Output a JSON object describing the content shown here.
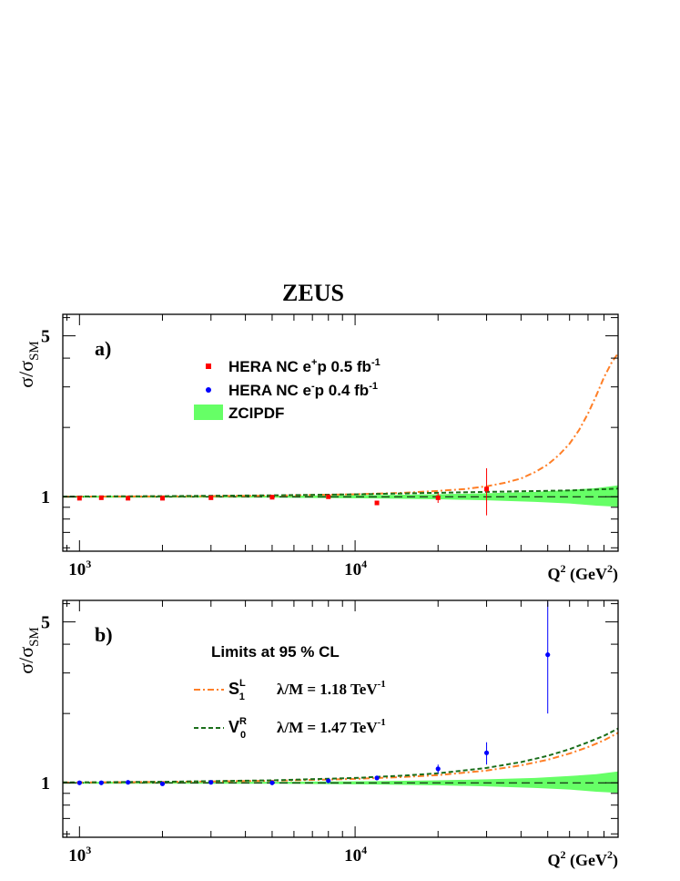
{
  "figure_title": "ZEUS",
  "colors": {
    "ep_plus": "#ff0000",
    "ep_minus": "#0000ff",
    "band": "#66ff66",
    "S1L_curve": "#ff7f27",
    "V0R_curve": "#1a6e1a",
    "axis": "#000000"
  },
  "chart_data": [
    {
      "type": "scatter",
      "panel_label": "a)",
      "title": "",
      "ylabel": {
        "main": "σ/σ",
        "sub": "SM"
      },
      "xlabel": {
        "main": "Q",
        "sup": "2",
        "units": "(GeV",
        "units_sup": "2",
        "units_close": ")"
      },
      "xscale": "log",
      "yscale": "log",
      "xlim": [
        870,
        90000
      ],
      "ylim": [
        0.58,
        6.2
      ],
      "x_major_ticks": [
        1000,
        10000
      ],
      "x_tick_labels": [
        {
          "base": "10",
          "exp": "3"
        },
        {
          "base": "10",
          "exp": "4"
        }
      ],
      "y_labeled_ticks": [
        {
          "value": 1,
          "label": "1"
        },
        {
          "value": 5,
          "label": "5"
        }
      ],
      "y_minor_ticks": [
        0.6,
        0.7,
        0.8,
        0.9,
        2,
        3,
        4,
        6
      ],
      "reference_line": 1,
      "legend": {
        "position": "upper-middle",
        "entries": [
          {
            "kind": "marker-square",
            "color": "#ff0000",
            "text": "HERA NC  e",
            "sup": "+",
            "text2": "p  0.5 fb",
            "sup2": "-1"
          },
          {
            "kind": "marker-circle",
            "color": "#0000ff",
            "text": "HERA NC  e",
            "sup": "-",
            "text2": "p  0.4 fb",
            "sup2": "-1"
          },
          {
            "kind": "band",
            "color": "#66ff66",
            "text": "ZCIPDF"
          }
        ]
      },
      "band": {
        "name": "ZCIPDF",
        "x": [
          870,
          5000,
          12000,
          20000,
          30000,
          45000,
          60000,
          75000,
          90000
        ],
        "low": [
          0.99,
          0.99,
          0.983,
          0.975,
          0.965,
          0.95,
          0.935,
          0.915,
          0.905
        ],
        "high": [
          1.01,
          1.01,
          1.017,
          1.025,
          1.035,
          1.05,
          1.07,
          1.09,
          1.12
        ]
      },
      "series": [
        {
          "name": "HERA NC e+p",
          "marker": "square",
          "color": "#ff0000",
          "points": [
            {
              "x": 1000,
              "y": 0.985,
              "err": 0
            },
            {
              "x": 1200,
              "y": 0.99,
              "err": 0
            },
            {
              "x": 1500,
              "y": 0.985,
              "err": 0
            },
            {
              "x": 2000,
              "y": 0.985,
              "err": 0
            },
            {
              "x": 3000,
              "y": 0.99,
              "err": 0
            },
            {
              "x": 5000,
              "y": 0.995,
              "err": 0
            },
            {
              "x": 8000,
              "y": 1.0,
              "err": 0
            },
            {
              "x": 12000,
              "y": 0.94,
              "err": 0.018
            },
            {
              "x": 20000,
              "y": 0.99,
              "err": 0.05
            },
            {
              "x": 30000,
              "y": 1.08,
              "err": 0.25
            }
          ]
        }
      ],
      "curves": [
        {
          "name": "S1L",
          "color": "#ff7f27",
          "dash": "dash-dot",
          "x": [
            870,
            2000,
            5000,
            10000,
            15000,
            20000,
            25000,
            30000,
            35000,
            40000,
            45000,
            50000,
            55000,
            60000,
            65000,
            70000,
            75000,
            80000,
            85000,
            90000
          ],
          "y": [
            1.001,
            1.004,
            1.01,
            1.025,
            1.04,
            1.06,
            1.08,
            1.11,
            1.15,
            1.2,
            1.28,
            1.38,
            1.52,
            1.7,
            1.95,
            2.3,
            2.75,
            3.3,
            3.8,
            4.2
          ]
        },
        {
          "name": "V0R",
          "color": "#1a6e1a",
          "dash": "dashed",
          "x": [
            870,
            2000,
            5000,
            10000,
            20000,
            30000,
            45000,
            60000,
            75000,
            90000
          ],
          "y": [
            1.002,
            1.006,
            1.014,
            1.024,
            1.04,
            1.05,
            1.058,
            1.065,
            1.075,
            1.085
          ]
        }
      ]
    },
    {
      "type": "scatter",
      "panel_label": "b)",
      "title": "",
      "ylabel": {
        "main": "σ/σ",
        "sub": "SM"
      },
      "xlabel": {
        "main": "Q",
        "sup": "2",
        "units": "(GeV",
        "units_sup": "2",
        "units_close": ")"
      },
      "xscale": "log",
      "yscale": "log",
      "xlim": [
        870,
        90000
      ],
      "ylim": [
        0.58,
        6.2
      ],
      "x_major_ticks": [
        1000,
        10000
      ],
      "x_tick_labels": [
        {
          "base": "10",
          "exp": "3"
        },
        {
          "base": "10",
          "exp": "4"
        }
      ],
      "y_labeled_ticks": [
        {
          "value": 1,
          "label": "1"
        },
        {
          "value": 5,
          "label": "5"
        }
      ],
      "y_minor_ticks": [
        0.6,
        0.7,
        0.8,
        0.9,
        2,
        3,
        4,
        6
      ],
      "reference_line": 1,
      "legend": {
        "title": "Limits at 95 % CL",
        "entries": [
          {
            "kind": "line",
            "color": "#ff7f27",
            "dash": "dash-dot",
            "symbol": "S",
            "sup": "L",
            "sub": "1",
            "value": "λ/M = 1.18 TeV",
            "value_sup": "-1"
          },
          {
            "kind": "line",
            "color": "#1a6e1a",
            "dash": "dashed",
            "symbol": "V",
            "sup": "R",
            "sub": "0",
            "value": "λ/M = 1.47 TeV",
            "value_sup": "-1"
          }
        ]
      },
      "band": {
        "name": "ZCIPDF",
        "x": [
          870,
          5000,
          12000,
          20000,
          30000,
          45000,
          60000,
          75000,
          90000
        ],
        "low": [
          0.99,
          0.99,
          0.983,
          0.975,
          0.965,
          0.95,
          0.935,
          0.915,
          0.905
        ],
        "high": [
          1.01,
          1.01,
          1.017,
          1.025,
          1.035,
          1.05,
          1.07,
          1.09,
          1.12
        ]
      },
      "series": [
        {
          "name": "HERA NC e-p",
          "marker": "circle",
          "color": "#0000ff",
          "points": [
            {
              "x": 1000,
              "y": 1.0,
              "err": 0
            },
            {
              "x": 1200,
              "y": 1.0,
              "err": 0
            },
            {
              "x": 1500,
              "y": 1.005,
              "err": 0
            },
            {
              "x": 2000,
              "y": 0.99,
              "err": 0
            },
            {
              "x": 3000,
              "y": 1.005,
              "err": 0
            },
            {
              "x": 5000,
              "y": 1.0,
              "err": 0
            },
            {
              "x": 8000,
              "y": 1.02,
              "err": 0.01
            },
            {
              "x": 12000,
              "y": 1.05,
              "err": 0.02
            },
            {
              "x": 20000,
              "y": 1.15,
              "err": 0.05
            },
            {
              "x": 30000,
              "y": 1.35,
              "err": 0.15
            },
            {
              "x": 50000,
              "y": 3.6,
              "err_up": 2.5,
              "err_down": 1.6
            }
          ]
        }
      ],
      "curves": [
        {
          "name": "S1L",
          "color": "#ff7f27",
          "dash": "dash-dot",
          "x": [
            870,
            2000,
            5000,
            10000,
            15000,
            20000,
            30000,
            40000,
            50000,
            60000,
            70000,
            80000,
            90000
          ],
          "y": [
            1.003,
            1.008,
            1.02,
            1.04,
            1.06,
            1.08,
            1.13,
            1.19,
            1.26,
            1.34,
            1.43,
            1.53,
            1.65
          ]
        },
        {
          "name": "V0R",
          "color": "#1a6e1a",
          "dash": "dashed",
          "x": [
            870,
            2000,
            5000,
            10000,
            15000,
            20000,
            30000,
            40000,
            50000,
            60000,
            70000,
            80000,
            90000
          ],
          "y": [
            1.004,
            1.01,
            1.025,
            1.05,
            1.075,
            1.1,
            1.16,
            1.23,
            1.31,
            1.4,
            1.5,
            1.6,
            1.72
          ]
        }
      ]
    }
  ]
}
